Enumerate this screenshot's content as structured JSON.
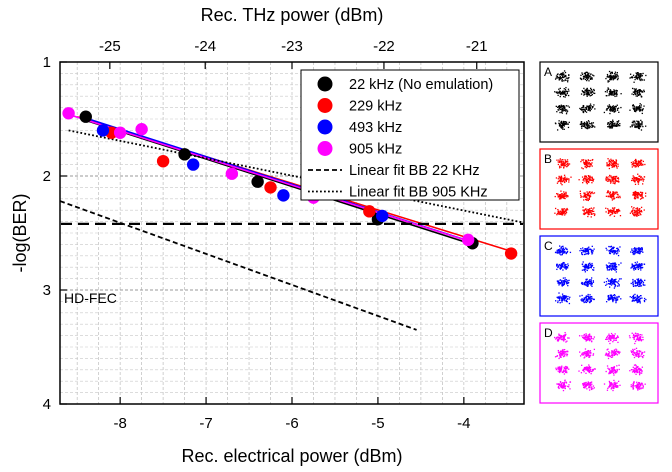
{
  "chart_data": {
    "type": "scatter",
    "xlabel": "Rec. electrical power (dBm)",
    "x2label": "Rec. THz power (dBm)",
    "ylabel": "-log(BER)",
    "xlim": [
      -8.7,
      -3.3
    ],
    "ylim": [
      1,
      4
    ],
    "x_ticks": [
      -8,
      -7,
      -6,
      -5,
      -4
    ],
    "x2_ticks": [
      -25,
      -24,
      -23,
      -22,
      -21
    ],
    "x2_tick_positions_in_x_units": [
      -8.12,
      -7.01,
      -6.0,
      -4.93,
      -3.85
    ],
    "y_ticks": [
      1,
      2,
      3,
      4
    ],
    "grid": true,
    "legend_position": "top-right",
    "threshold": {
      "label": "HD-FEC",
      "y": 2.42
    },
    "series": [
      {
        "name": "22 kHz (No emulation)",
        "color": "#000000",
        "x": [
          -8.4,
          -7.25,
          -6.4,
          -5.0,
          -3.9
        ],
        "y": [
          1.48,
          1.81,
          2.05,
          2.38,
          2.59
        ],
        "fit": {
          "x": [
            -8.45,
            -3.9
          ],
          "y": [
            1.5,
            2.6
          ]
        }
      },
      {
        "name": "229 kHz",
        "color": "#ff0000",
        "x": [
          -8.1,
          -7.5,
          -6.25,
          -5.1,
          -3.45
        ],
        "y": [
          1.62,
          1.87,
          2.1,
          2.31,
          2.68
        ],
        "fit": {
          "x": [
            -8.5,
            -3.45
          ],
          "y": [
            1.48,
            2.66
          ]
        }
      },
      {
        "name": "493 kHz",
        "color": "#0000ff",
        "x": [
          -8.2,
          -7.15,
          -6.1,
          -4.95
        ],
        "y": [
          1.6,
          1.9,
          2.17,
          2.35
        ],
        "fit": {
          "x": [
            -8.45,
            -3.9
          ],
          "y": [
            1.48,
            2.58
          ]
        }
      },
      {
        "name": "905 kHz",
        "color": "#ff00ff",
        "x": [
          -8.6,
          -8.0,
          -7.75,
          -6.7,
          -5.75,
          -3.95
        ],
        "y": [
          1.45,
          1.62,
          1.59,
          1.98,
          2.19,
          2.56
        ],
        "fit": {
          "x": [
            -8.6,
            -3.95
          ],
          "y": [
            1.46,
            2.57
          ]
        }
      },
      {
        "name": "Linear fit BB 22 KHz",
        "style": "dashed",
        "x": [
          -8.7,
          -4.55
        ],
        "y": [
          2.22,
          3.35
        ]
      },
      {
        "name": "Linear fit BB 905 KHz",
        "style": "dotted",
        "x": [
          -8.6,
          -3.3
        ],
        "y": [
          1.6,
          2.41
        ]
      }
    ]
  },
  "constellations": [
    {
      "label": "A",
      "color": "#000000",
      "border": "#000000"
    },
    {
      "label": "B",
      "color": "#ff0000",
      "border": "#ff0000"
    },
    {
      "label": "C",
      "color": "#0000ff",
      "border": "#0000ff"
    },
    {
      "label": "D",
      "color": "#ff00ff",
      "border": "#ff00ff"
    }
  ]
}
